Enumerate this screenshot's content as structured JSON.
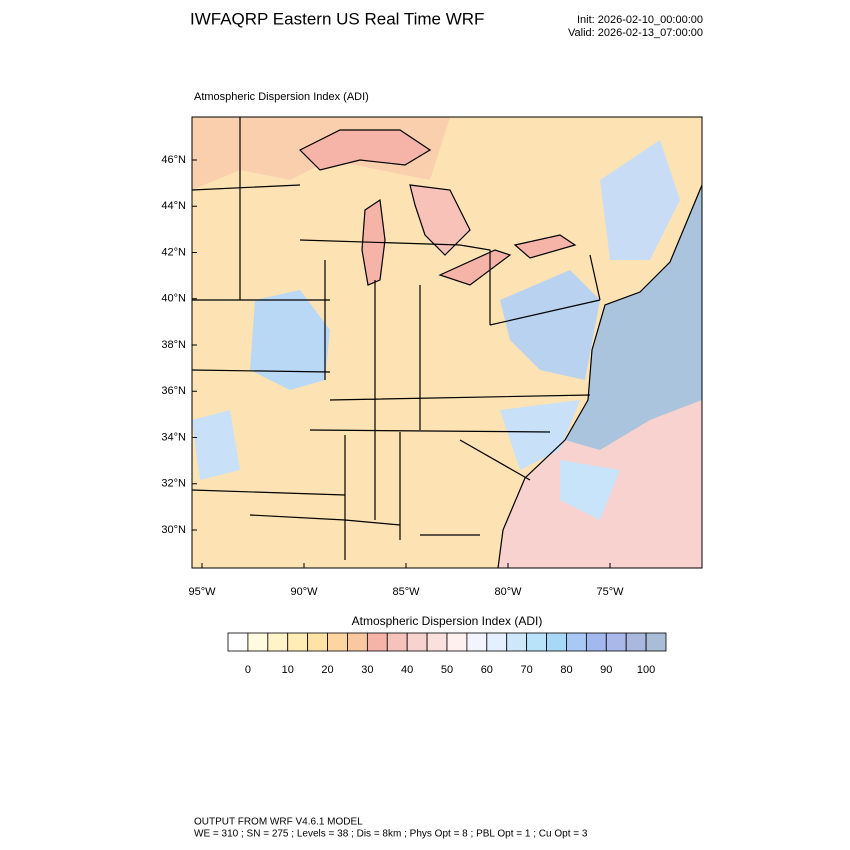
{
  "header": {
    "title": "IWFAQRP Eastern US Real Time WRF",
    "init": "Init: 2026-02-10_00:00:00",
    "valid": "Valid: 2026-02-13_07:00:00"
  },
  "map": {
    "subtitle": "Atmospheric Dispersion Index   (ADI)",
    "lat_labels": [
      "46°N",
      "44°N",
      "42°N",
      "40°N",
      "38°N",
      "36°N",
      "34°N",
      "32°N",
      "30°N"
    ],
    "lon_labels": [
      "95°W",
      "90°W",
      "85°W",
      "80°W",
      "75°W"
    ]
  },
  "colorbar": {
    "title": "Atmospheric Dispersion Index  (ADI)",
    "labels": [
      0,
      10,
      20,
      30,
      40,
      50,
      60,
      70,
      80,
      90,
      100
    ],
    "colors": [
      "#ffffff",
      "#fffbe0",
      "#fff4c8",
      "#ffedb5",
      "#ffe2a6",
      "#fdd5a0",
      "#f9c7a0",
      "#f6b4a8",
      "#f5c2bc",
      "#f8d2cf",
      "#fbe1de",
      "#fdf0ef",
      "#f4f4ff",
      "#e4efff",
      "#cfe7fb",
      "#b8e3fb",
      "#a8d8f8",
      "#a8c8f5",
      "#a3b8ef",
      "#a9b8e8",
      "#aab8e0",
      "#a9bdd6"
    ]
  },
  "footer": {
    "line1": "OUTPUT FROM WRF V4.6.1 MODEL",
    "line2": "WE = 310 ; SN = 275 ; Levels = 38 ; Dis = 8km ; Phys Opt = 8 ; PBL Opt = 1 ; Cu Opt = 3"
  }
}
